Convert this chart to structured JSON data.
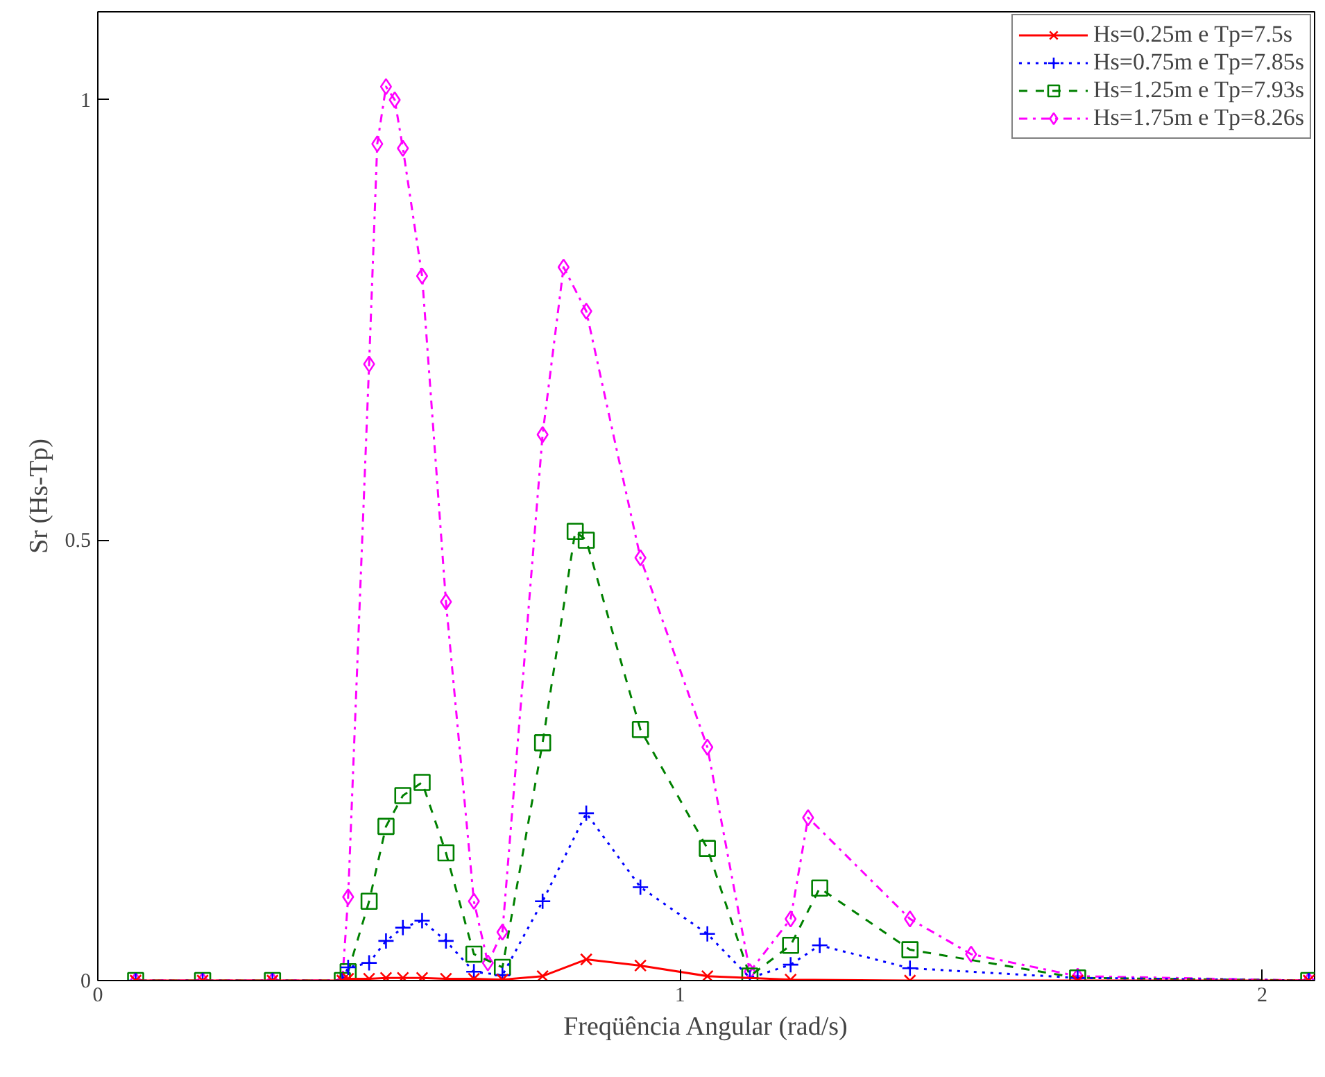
{
  "chart_data": {
    "type": "line",
    "xlabel": "Freqüência Angular (rad/s)",
    "ylabel": "Sr (Hs-Tp)",
    "xlim": [
      0,
      2.09
    ],
    "ylim": [
      0,
      1.1
    ],
    "xticks": [
      0,
      1,
      2
    ],
    "yticks": [
      0,
      0.5,
      1
    ],
    "grid": false,
    "legend": "top right",
    "series": [
      {
        "name": "Hs=0.25m e Tp=7.5s",
        "color": "#ff0000",
        "line_style": "solid",
        "marker": "x",
        "x": [
          0.065,
          0.18,
          0.3,
          0.42,
          0.43,
          0.466,
          0.495,
          0.524,
          0.557,
          0.598,
          0.646,
          0.695,
          0.764,
          0.839,
          0.932,
          1.047,
          1.19,
          1.395,
          1.683,
          2.08
        ],
        "values": [
          0,
          0,
          0,
          0,
          0.002,
          0.002,
          0.003,
          0.003,
          0.003,
          0.002,
          0.002,
          0.001,
          0.005,
          0.024,
          0.017,
          0.005,
          0.001,
          0,
          0,
          0
        ]
      },
      {
        "name": "Hs=0.75m e Tp=7.85s",
        "color": "#0000ff",
        "line_style": "dotted",
        "marker": "cross",
        "x": [
          0.065,
          0.18,
          0.3,
          0.42,
          0.43,
          0.466,
          0.495,
          0.524,
          0.557,
          0.598,
          0.646,
          0.695,
          0.764,
          0.839,
          0.932,
          1.047,
          1.12,
          1.19,
          1.24,
          1.395,
          1.683,
          2.08
        ],
        "values": [
          0,
          0,
          0,
          0,
          0.015,
          0.02,
          0.045,
          0.06,
          0.068,
          0.045,
          0.01,
          0.006,
          0.09,
          0.19,
          0.106,
          0.053,
          0.003,
          0.018,
          0.04,
          0.014,
          0.003,
          0
        ]
      },
      {
        "name": "Hs=1.25m e Tp=7.93s",
        "color": "#008000",
        "line_style": "dashed",
        "marker": "square",
        "x": [
          0.065,
          0.18,
          0.3,
          0.42,
          0.43,
          0.466,
          0.495,
          0.524,
          0.557,
          0.598,
          0.646,
          0.695,
          0.764,
          0.82,
          0.839,
          0.932,
          1.047,
          1.12,
          1.19,
          1.24,
          1.395,
          1.683,
          2.08
        ],
        "values": [
          0,
          0,
          0,
          0,
          0.01,
          0.09,
          0.175,
          0.21,
          0.225,
          0.145,
          0.03,
          0.015,
          0.27,
          0.51,
          0.5,
          0.285,
          0.15,
          0.005,
          0.04,
          0.105,
          0.035,
          0.003,
          0
        ]
      },
      {
        "name": "Hs=1.75m e Tp=8.26s",
        "color": "#ff00ff",
        "line_style": "dashdot",
        "marker": "diamond",
        "x": [
          0.065,
          0.18,
          0.3,
          0.42,
          0.43,
          0.466,
          0.48,
          0.495,
          0.51,
          0.524,
          0.557,
          0.598,
          0.646,
          0.67,
          0.695,
          0.764,
          0.8,
          0.839,
          0.932,
          1.047,
          1.12,
          1.19,
          1.22,
          1.395,
          1.5,
          1.683,
          2.08
        ],
        "values": [
          0,
          0,
          0,
          0,
          0.095,
          0.7,
          0.95,
          1.015,
          1.0,
          0.945,
          0.8,
          0.43,
          0.09,
          0.02,
          0.055,
          0.62,
          0.81,
          0.76,
          0.48,
          0.265,
          0.01,
          0.07,
          0.185,
          0.07,
          0.03,
          0.005,
          0
        ]
      }
    ]
  }
}
